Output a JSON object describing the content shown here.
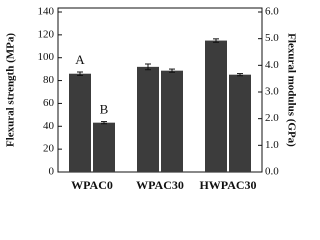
{
  "chart_data": {
    "type": "bar",
    "y_label": "Flexural strength (MPa)",
    "y2_label": "Flexural modulus (GPa)",
    "categories": [
      "WPAC0",
      "WPAC30",
      "HWPAC30"
    ],
    "series": [
      {
        "color": "#3c3c3c",
        "values": [
          86,
          92,
          115
        ],
        "errors": [
          1.5,
          2.5,
          1.5
        ]
      },
      {
        "color": "#3c3c3c",
        "axis": "y2",
        "values": [
          1.85,
          3.8,
          3.65
        ],
        "errors": [
          0.04,
          0.06,
          0.04
        ]
      }
    ],
    "annotations": [
      {
        "text": "A",
        "series": 0,
        "category": 0
      },
      {
        "text": "B",
        "series": 1,
        "category": 0
      }
    ],
    "ylim": [
      0,
      140
    ],
    "yticks": [
      0,
      20,
      40,
      60,
      80,
      100,
      120,
      140
    ],
    "y2lim": [
      0,
      6
    ],
    "y2ticks": [
      {
        "value": 0,
        "label": "0.0"
      },
      {
        "value": 1,
        "label": "1.0"
      },
      {
        "value": 2,
        "label": "2.0"
      },
      {
        "value": 3,
        "label": "3.0"
      },
      {
        "value": 4,
        "label": "4.0"
      },
      {
        "value": 5,
        "label": "5.0"
      },
      {
        "value": 6,
        "label": "6.0"
      }
    ],
    "grid": false
  }
}
